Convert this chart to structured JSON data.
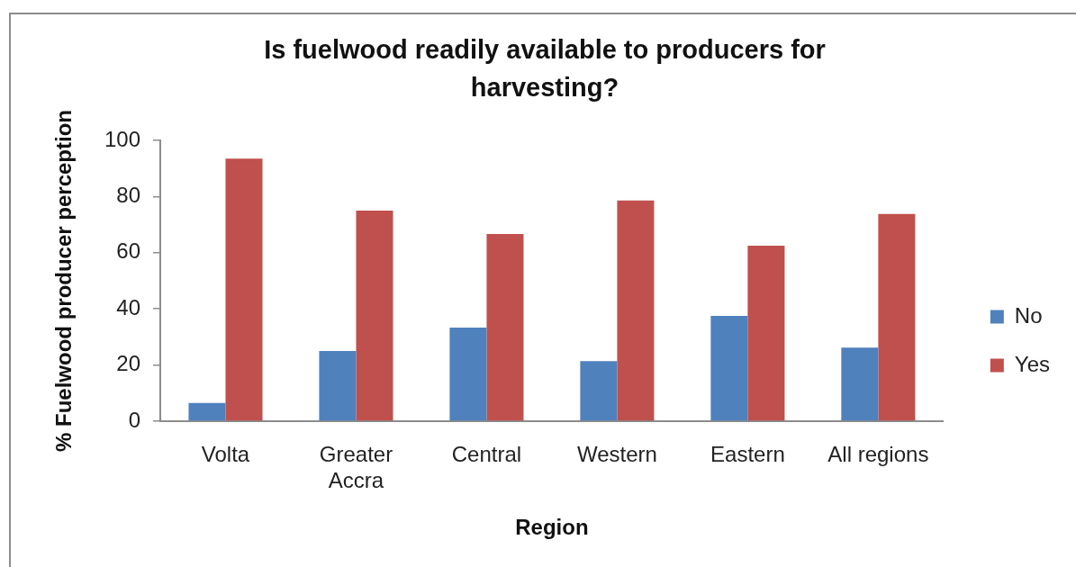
{
  "chart_data": {
    "type": "bar",
    "title": "Is fuelwood readily available to producers for harvesting?",
    "xlabel": "Region",
    "ylabel": "% Fuelwood producer perception",
    "categories": [
      "Volta",
      "Greater Accra",
      "Central",
      "Western",
      "Eastern",
      "All regions"
    ],
    "series": [
      {
        "name": "No",
        "color": "#4f81bd",
        "values": [
          6.5,
          25,
          33.3,
          21.4,
          37.5,
          26.2
        ]
      },
      {
        "name": "Yes",
        "color": "#c0504d",
        "values": [
          93.5,
          75,
          66.7,
          78.6,
          62.5,
          73.8
        ]
      }
    ],
    "ylim": [
      0,
      100
    ],
    "yticks": [
      0,
      20,
      40,
      60,
      80,
      100
    ],
    "grid": false,
    "legend": "right"
  }
}
